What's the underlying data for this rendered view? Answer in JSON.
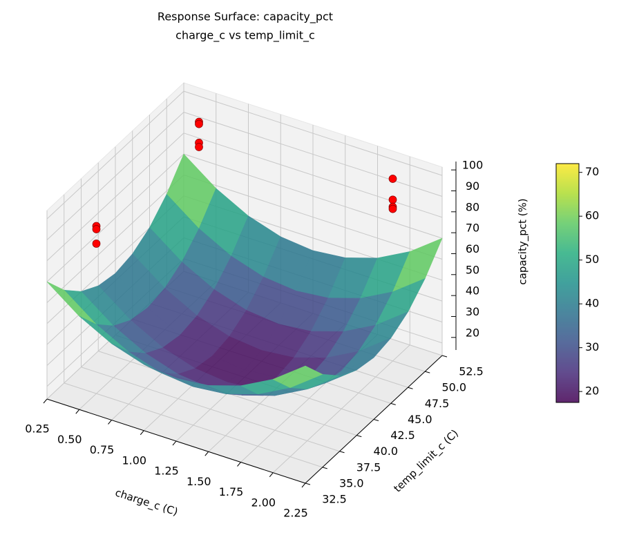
{
  "chart_data": {
    "type": "surface3d",
    "title": "Response Surface: capacity_pct",
    "subtitle": "charge_c vs temp_limit_c",
    "xlabel": "charge_c (C)",
    "ylabel": "temp_limit_c (C)",
    "zlabel": "capacity_pct (%)",
    "xlim": [
      0.25,
      2.25
    ],
    "ylim": [
      32.5,
      52.5
    ],
    "zlim": [
      14,
      104
    ],
    "xticks": [
      0.25,
      {
        "value": 0.5,
        "label": "0.50"
      },
      0.75,
      {
        "value": 1,
        "label": "1.00"
      },
      1.25,
      {
        "value": 1.5,
        "label": "1.50"
      },
      1.75,
      {
        "value": 2,
        "label": "2.00"
      },
      2.25
    ],
    "yticks": [
      32.5,
      {
        "value": 35,
        "label": "35.0"
      },
      37.5,
      {
        "value": 40,
        "label": "40.0"
      },
      42.5,
      {
        "value": 45,
        "label": "45.0"
      },
      47.5,
      {
        "value": 50,
        "label": "50.0"
      },
      52.5
    ],
    "zticks": [
      20,
      30,
      40,
      50,
      60,
      70,
      80,
      90,
      100
    ],
    "grid": true,
    "colormap": "viridis",
    "clim": [
      17.5,
      72
    ],
    "cticks": [
      20,
      30,
      40,
      50,
      60,
      70
    ],
    "surface": {
      "x": [
        0.25,
        0.5,
        0.75,
        1,
        1.25,
        1.5,
        1.75,
        2,
        2.25
      ],
      "y": [
        32.5,
        35,
        37.5,
        40,
        42.5,
        45,
        47.5,
        50,
        52.5
      ],
      "z": [
        [
          70,
          58.4,
          50.1,
          45.2,
          43.5,
          45.2,
          50.1,
          58.4,
          70
        ],
        [
          58.6,
          47,
          38.7,
          33.8,
          32.1,
          33.8,
          38.7,
          47,
          58.6
        ],
        [
          50.5,
          38.9,
          30.6,
          25.7,
          24,
          25.7,
          30.6,
          38.9,
          50.5
        ],
        [
          45.6,
          34,
          25.7,
          20.8,
          19.1,
          20.8,
          25.7,
          34,
          45.6
        ],
        [
          44,
          32.4,
          24.1,
          19.2,
          17.5,
          19.2,
          24.1,
          32.4,
          44
        ],
        [
          45.6,
          34,
          25.7,
          20.8,
          19.1,
          20.8,
          25.7,
          34,
          45.6
        ],
        [
          50.5,
          38.9,
          30.6,
          25.7,
          24,
          25.7,
          30.6,
          38.9,
          50.5
        ],
        [
          58.6,
          47,
          38.7,
          33.8,
          32.1,
          33.8,
          38.7,
          47,
          58.6
        ],
        [
          70,
          58.4,
          50.1,
          45.2,
          43.5,
          45.2,
          50.1,
          58.4,
          70
        ]
      ],
      "opacity": 0.85
    },
    "points": {
      "color": "#ff0000",
      "x": [
        0.5,
        0.5,
        0.5,
        0.5,
        0.5,
        0.5,
        0.5,
        2,
        2,
        2,
        2
      ],
      "y": [
        35,
        35,
        35,
        50,
        50,
        50,
        50,
        50,
        50,
        50,
        50
      ],
      "z": [
        94,
        92.5,
        85.6,
        98,
        97,
        88,
        86,
        101,
        91,
        87.6,
        86.6
      ]
    }
  }
}
